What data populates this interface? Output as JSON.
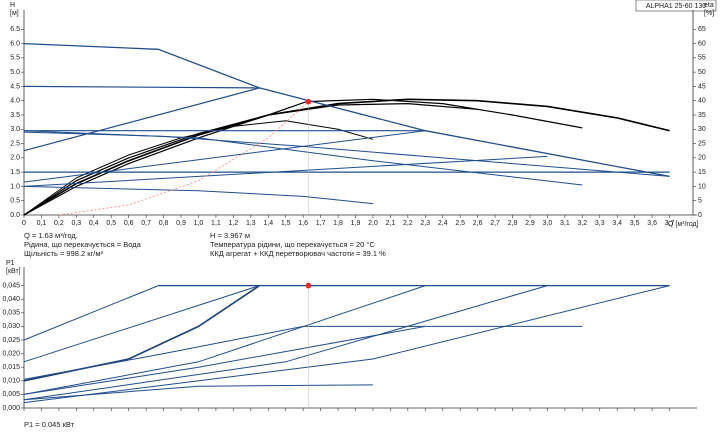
{
  "chart_data": [
    {
      "type": "line",
      "title": "ALPHA1 25-60 130",
      "ylabel": "H",
      "yunit": "[м]",
      "y2label": "eta",
      "y2unit": "[%]",
      "xlabel": "Q [м³/год]",
      "xlim": [
        0,
        3.8
      ],
      "xticks": [
        {
          "value": 0,
          "label": "0"
        },
        {
          "value": 0.1,
          "label": "0,1"
        },
        {
          "value": 0.2,
          "label": "0,2"
        },
        {
          "value": 0.3,
          "label": "0,3"
        },
        {
          "value": 0.4,
          "label": "0,4"
        },
        {
          "value": 0.5,
          "label": "0,5"
        },
        {
          "value": 0.6,
          "label": "0,6"
        },
        {
          "value": 0.7,
          "label": "0,7"
        },
        {
          "value": 0.8,
          "label": "0,8"
        },
        {
          "value": 0.9,
          "label": "0,9"
        },
        {
          "value": 1.0,
          "label": "1,0"
        },
        {
          "value": 1.1,
          "label": "1,1"
        },
        {
          "value": 1.2,
          "label": "1,2"
        },
        {
          "value": 1.3,
          "label": "1,3"
        },
        {
          "value": 1.4,
          "label": "1,4"
        },
        {
          "value": 1.5,
          "label": "1,5"
        },
        {
          "value": 1.6,
          "label": "1,6"
        },
        {
          "value": 1.7,
          "label": "1,7"
        },
        {
          "value": 1.8,
          "label": "1,8"
        },
        {
          "value": 1.9,
          "label": "1,9"
        },
        {
          "value": 2.0,
          "label": "2,0"
        },
        {
          "value": 2.1,
          "label": "2,1"
        },
        {
          "value": 2.2,
          "label": "2,2"
        },
        {
          "value": 2.3,
          "label": "2,3"
        },
        {
          "value": 2.4,
          "label": "2,4"
        },
        {
          "value": 2.5,
          "label": "2,5"
        },
        {
          "value": 2.6,
          "label": "2,6"
        },
        {
          "value": 2.7,
          "label": "2,7"
        },
        {
          "value": 2.8,
          "label": "2,8"
        },
        {
          "value": 2.9,
          "label": "2,9"
        },
        {
          "value": 3.0,
          "label": "3,0"
        },
        {
          "value": 3.1,
          "label": "3,1"
        },
        {
          "value": 3.2,
          "label": "3,2"
        },
        {
          "value": 3.3,
          "label": "3,3"
        },
        {
          "value": 3.4,
          "label": "3,4"
        },
        {
          "value": 3.5,
          "label": "3,5"
        },
        {
          "value": 3.6,
          "label": "3,6"
        },
        {
          "value": 3.7,
          "label": "3,7"
        }
      ],
      "ylim": [
        0,
        7
      ],
      "yticks": [
        {
          "value": 0,
          "label": "0.0"
        },
        {
          "value": 0.5,
          "label": "0.5"
        },
        {
          "value": 1,
          "label": "1.0"
        },
        {
          "value": 1.5,
          "label": "1.5"
        },
        {
          "value": 2,
          "label": "2.0"
        },
        {
          "value": 2.5,
          "label": "2.5"
        },
        {
          "value": 3,
          "label": "3.0"
        },
        {
          "value": 3.5,
          "label": "3.5"
        },
        {
          "value": 4,
          "label": "4.0"
        },
        {
          "value": 4.5,
          "label": "4.5"
        },
        {
          "value": 5,
          "label": "5.0"
        },
        {
          "value": 5.5,
          "label": "5.5"
        },
        {
          "value": 6,
          "label": "6.0"
        },
        {
          "value": 6.5,
          "label": "6.5"
        }
      ],
      "y2lim": [
        0,
        70
      ],
      "y2ticks": [
        0,
        5,
        10,
        15,
        20,
        25,
        30,
        35,
        40,
        45,
        50,
        55,
        60,
        65
      ],
      "series": [
        {
          "color": "#000000",
          "width": 1.6,
          "x": [
            0,
            0.3,
            0.6,
            1.0,
            1.4,
            1.8,
            2.2,
            2.6,
            3.0,
            3.4,
            3.7
          ],
          "values": [
            0,
            1.1,
            1.9,
            2.8,
            3.5,
            3.9,
            4.05,
            4.0,
            3.8,
            3.4,
            2.95
          ]
        },
        {
          "color": "#000000",
          "width": 1.2,
          "x": [
            0,
            0.3,
            0.6,
            1.0,
            1.4,
            1.62,
            2.0,
            2.4,
            2.8,
            3.2
          ],
          "values": [
            0,
            1.0,
            1.8,
            2.7,
            3.5,
            3.97,
            4.05,
            3.9,
            3.5,
            3.05
          ]
        },
        {
          "color": "#000000",
          "width": 1.2,
          "x": [
            0,
            0.3,
            0.6,
            1.0,
            1.4,
            1.8,
            2.2,
            2.6
          ],
          "values": [
            0,
            1.2,
            2.0,
            2.85,
            3.5,
            3.85,
            3.9,
            3.7
          ]
        },
        {
          "color": "#000000",
          "width": 1,
          "x": [
            0,
            0.3,
            0.6,
            0.9,
            1.2,
            1.5,
            1.8,
            2.0
          ],
          "values": [
            0,
            1.3,
            2.1,
            2.7,
            3.1,
            3.3,
            3.0,
            2.65
          ]
        },
        {
          "color": "#1f4e8c",
          "width": 1.3,
          "x": [
            0,
            0.77,
            1.35,
            2.3,
            3.7
          ],
          "values": [
            6.0,
            5.8,
            4.45,
            2.95,
            1.35
          ]
        },
        {
          "color": "#1f4e8c",
          "width": 1.2,
          "x": [
            0,
            1.35
          ],
          "values": [
            4.5,
            4.45
          ]
        },
        {
          "color": "#1f4e8c",
          "width": 1.2,
          "x": [
            0,
            1.35
          ],
          "values": [
            2.25,
            4.45
          ]
        },
        {
          "color": "#1f4e8c",
          "width": 1.2,
          "x": [
            0,
            2.3
          ],
          "values": [
            2.95,
            2.95
          ]
        },
        {
          "color": "#1f4e8c",
          "width": 1,
          "x": [
            0,
            2.3
          ],
          "values": [
            1.15,
            2.95
          ]
        },
        {
          "color": "#1f4e8c",
          "width": 1.2,
          "x": [
            0,
            3.7
          ],
          "values": [
            1.5,
            1.5
          ]
        },
        {
          "color": "#1f4e8c",
          "width": 1,
          "x": [
            0,
            3.0
          ],
          "values": [
            1.0,
            2.05
          ]
        },
        {
          "color": "#1f4e8c",
          "width": 1,
          "x": [
            0,
            1.0,
            2.0,
            3.2
          ],
          "values": [
            2.95,
            2.7,
            1.9,
            1.05
          ]
        },
        {
          "color": "#1f4e8c",
          "width": 1,
          "x": [
            0,
            1.0,
            1.6,
            2.0
          ],
          "values": [
            1.0,
            0.85,
            0.65,
            0.4
          ]
        },
        {
          "color": "#1f4e8c",
          "width": 1,
          "x": [
            0,
            0.8,
            1.6,
            2.4,
            3.7
          ],
          "values": [
            2.9,
            2.75,
            2.4,
            2.0,
            1.35
          ]
        },
        {
          "color": "#ff8080",
          "width": 0.8,
          "dash": true,
          "axis": "y2",
          "x": [
            0.2,
            0.6,
            1.0,
            1.4,
            1.62
          ],
          "values": [
            0,
            3.5,
            12,
            27,
            39.1
          ]
        }
      ],
      "point": {
        "color": "#e8281e",
        "x": 1.63,
        "y": 3.967
      }
    },
    {
      "type": "line",
      "ylabel": "P1",
      "yunit": "[кВт]",
      "xlim": [
        0,
        3.8
      ],
      "ylim": [
        0,
        0.05
      ],
      "yticks": [
        {
          "value": 0,
          "label": "0,000"
        },
        {
          "value": 0.005,
          "label": "0,005"
        },
        {
          "value": 0.01,
          "label": "0,010"
        },
        {
          "value": 0.015,
          "label": "0,015"
        },
        {
          "value": 0.02,
          "label": "0,020"
        },
        {
          "value": 0.025,
          "label": "0,025"
        },
        {
          "value": 0.03,
          "label": "0,030"
        },
        {
          "value": 0.035,
          "label": "0,035"
        },
        {
          "value": 0.04,
          "label": "0,040"
        },
        {
          "value": 0.045,
          "label": "0,045"
        }
      ],
      "series": [
        {
          "color": "#1f4e8c",
          "width": 1.3,
          "x": [
            0.77,
            3.7
          ],
          "values": [
            0.045,
            0.045
          ]
        },
        {
          "color": "#1f4e8c",
          "width": 1,
          "x": [
            0,
            0.77
          ],
          "values": [
            0.025,
            0.045
          ]
        },
        {
          "color": "#1f4e8c",
          "width": 1,
          "x": [
            0,
            1.35
          ],
          "values": [
            0.017,
            0.045
          ]
        },
        {
          "color": "#1a3f75",
          "width": 1.6,
          "x": [
            0,
            0.6,
            1.0,
            1.35
          ],
          "values": [
            0.01,
            0.018,
            0.03,
            0.045
          ]
        },
        {
          "color": "#1f4e8c",
          "width": 1,
          "x": [
            0,
            1.0,
            2.3
          ],
          "values": [
            0.005,
            0.017,
            0.045
          ]
        },
        {
          "color": "#1f4e8c",
          "width": 1,
          "x": [
            0,
            1.5,
            3.0
          ],
          "values": [
            0.003,
            0.017,
            0.045
          ]
        },
        {
          "color": "#1f4e8c",
          "width": 1,
          "x": [
            0,
            2.0,
            3.7
          ],
          "values": [
            0.002,
            0.018,
            0.045
          ]
        },
        {
          "color": "#1f4e8c",
          "width": 1,
          "x": [
            0,
            0.8,
            1.6,
            3.2
          ],
          "values": [
            0.0105,
            0.02,
            0.03,
            0.03
          ]
        },
        {
          "color": "#1f4e8c",
          "width": 1,
          "x": [
            0,
            1.0,
            2.0
          ],
          "values": [
            0.003,
            0.008,
            0.0085
          ]
        },
        {
          "color": "#1f4e8c",
          "width": 1,
          "x": [
            0,
            1.0,
            2.3
          ],
          "values": [
            0.005,
            0.015,
            0.03
          ]
        }
      ],
      "point": {
        "color": "#e8281e",
        "x": 1.63,
        "y": 0.045
      }
    }
  ],
  "notes": {
    "q": "Q = 1.63 м³/год.",
    "fluid": "Рідина, що перекачується = Вода",
    "density": "Щільність = 998.2 кг/м³",
    "h": "H = 3.967 м",
    "temp": "Температура рідини, що перекачується = 20 °C",
    "eff": "ККД агрегат + ККД перетворювач частоти = 39.1 %",
    "p1": "P1 = 0.045 кВт"
  }
}
